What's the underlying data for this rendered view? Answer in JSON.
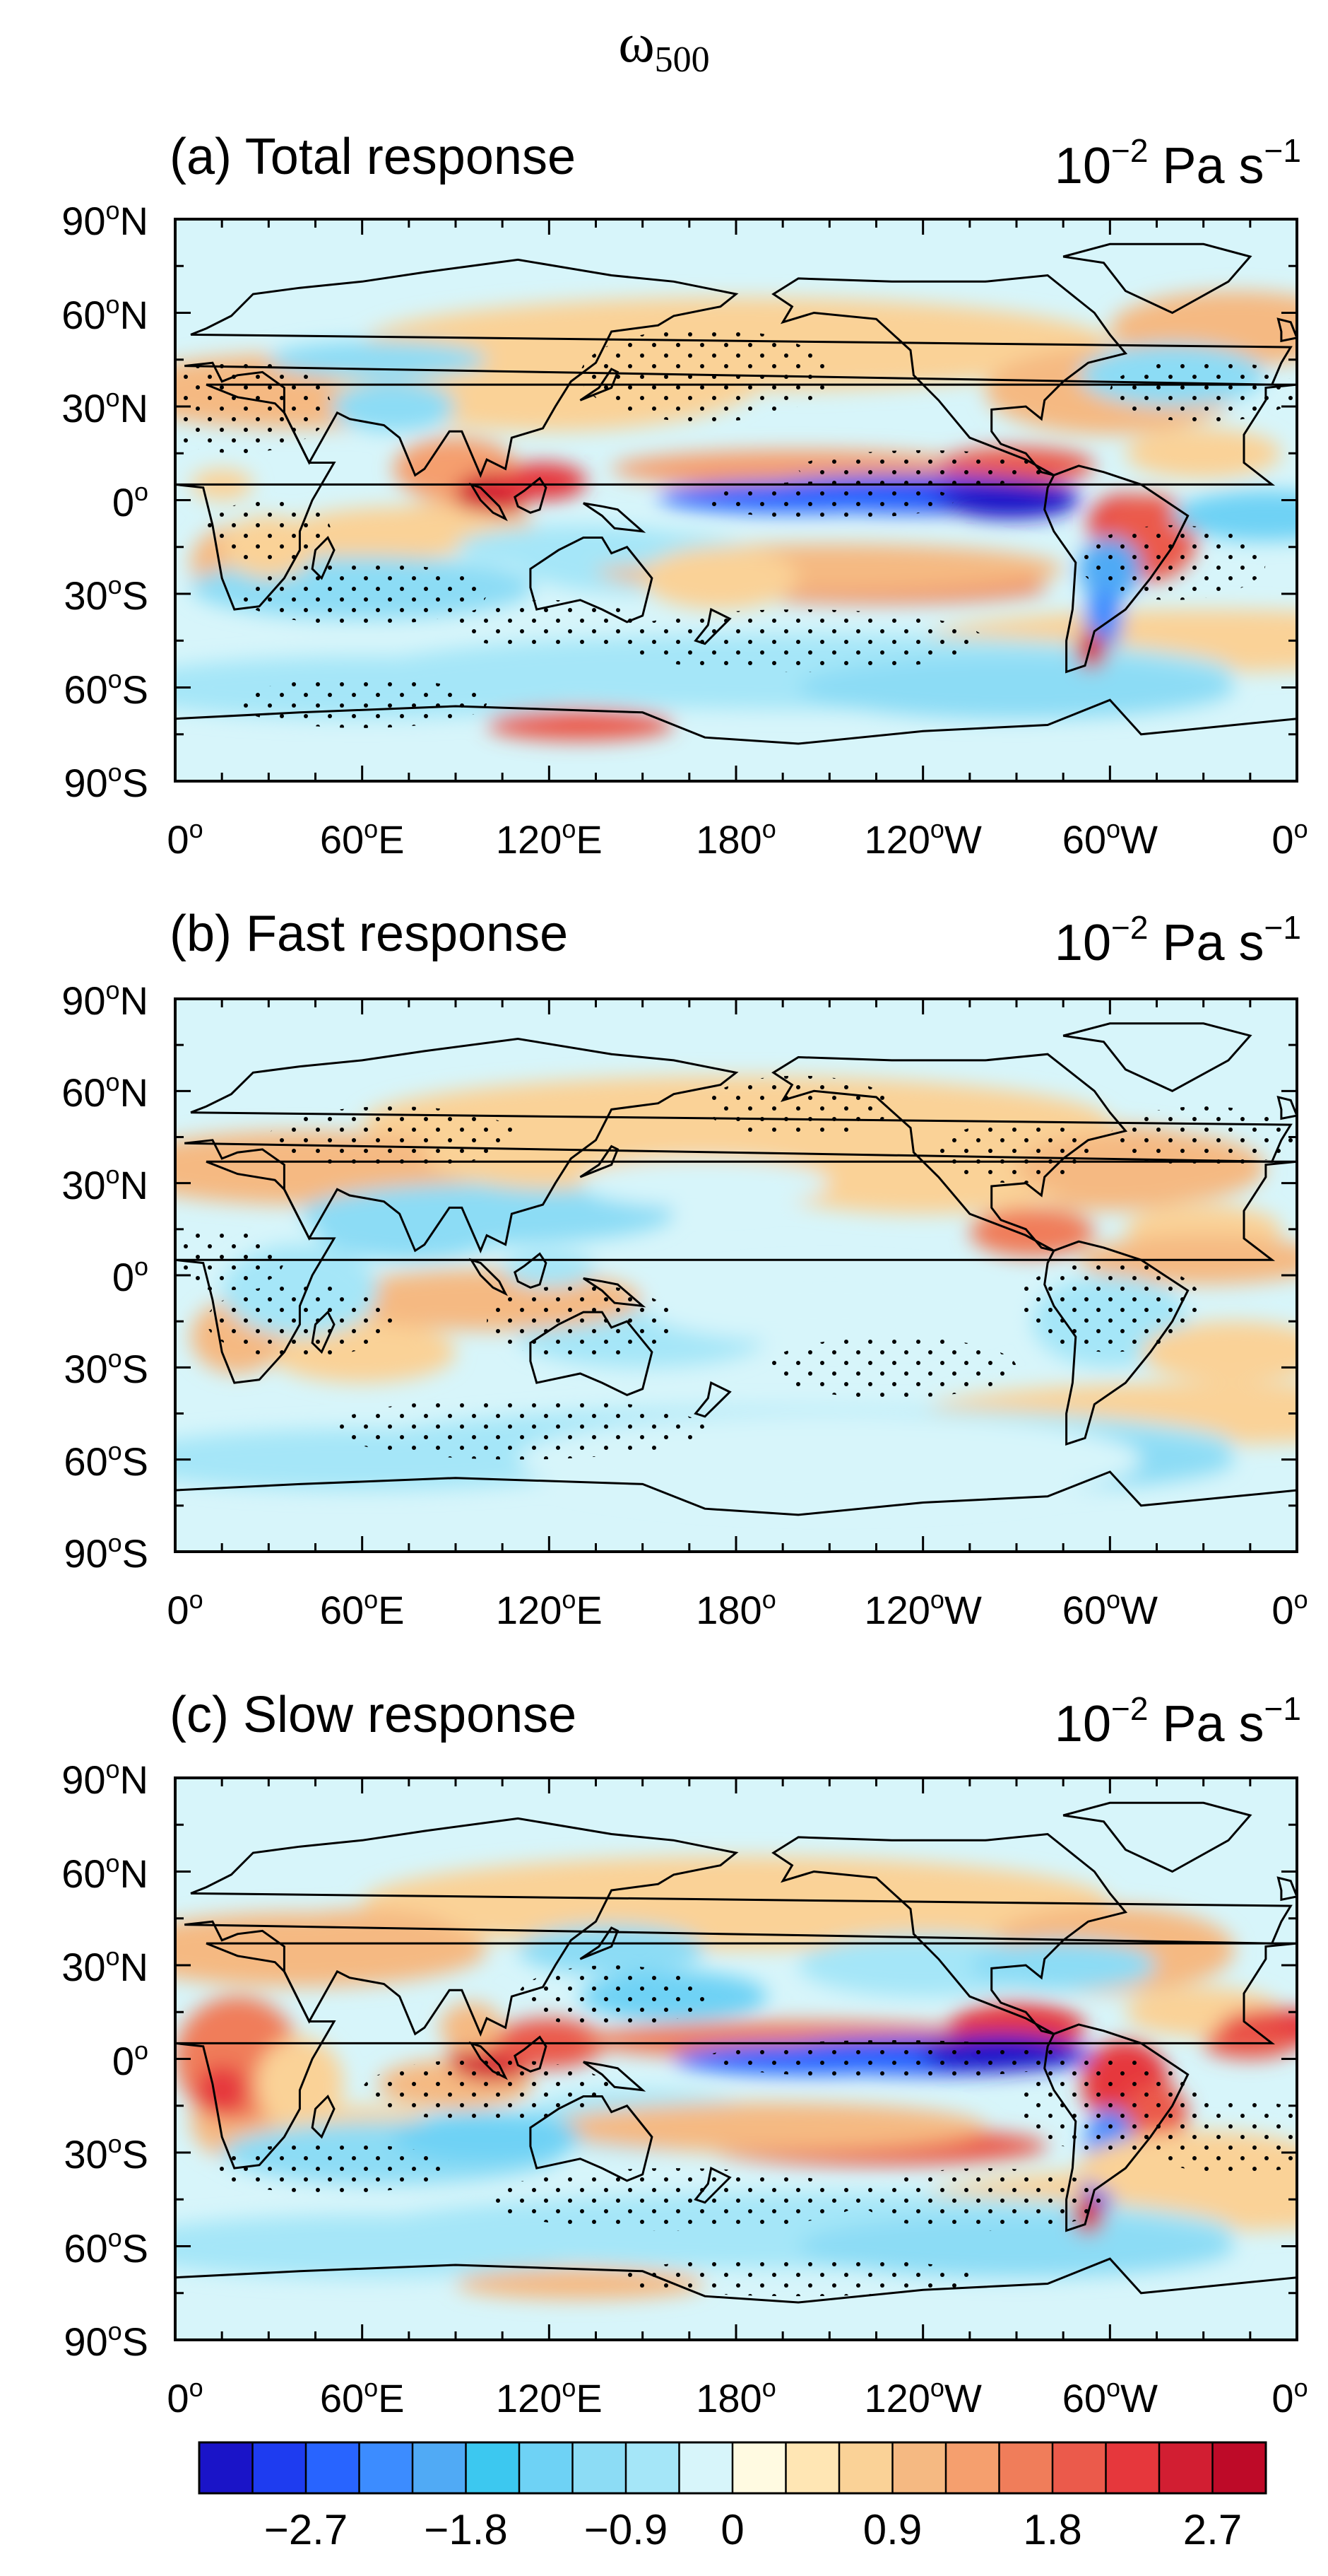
{
  "figure": {
    "title_symbol": "ω",
    "title_subscript": "500"
  },
  "panels": [
    {
      "title": "(a) Total response",
      "units_base": "10",
      "units_exp": "−2",
      "units_rest": " Pa s",
      "units_exp2": "−1",
      "pattern": "total"
    },
    {
      "title": "(b) Fast response",
      "units_base": "10",
      "units_exp": "−2",
      "units_rest": " Pa s",
      "units_exp2": "−1",
      "pattern": "fast"
    },
    {
      "title": "(c) Slow response",
      "units_base": "10",
      "units_exp": "−2",
      "units_rest": " Pa s",
      "units_exp2": "−1",
      "pattern": "slow"
    }
  ],
  "lat_ticks": [
    {
      "deg": "90",
      "sup": "o",
      "hem": "N",
      "value": 90
    },
    {
      "deg": "60",
      "sup": "o",
      "hem": "N",
      "value": 60
    },
    {
      "deg": "30",
      "sup": "o",
      "hem": "N",
      "value": 30
    },
    {
      "deg": "0",
      "sup": "o",
      "hem": "",
      "value": 0
    },
    {
      "deg": "30",
      "sup": "o",
      "hem": "S",
      "value": -30
    },
    {
      "deg": "60",
      "sup": "o",
      "hem": "S",
      "value": -60
    },
    {
      "deg": "90",
      "sup": "o",
      "hem": "S",
      "value": -90
    }
  ],
  "lon_ticks": [
    {
      "deg": "0",
      "sup": "o",
      "hem": "",
      "value": 0
    },
    {
      "deg": "60",
      "sup": "o",
      "hem": "E",
      "value": 60
    },
    {
      "deg": "120",
      "sup": "o",
      "hem": "E",
      "value": 120
    },
    {
      "deg": "180",
      "sup": "o",
      "hem": "",
      "value": 180
    },
    {
      "deg": "120",
      "sup": "o",
      "hem": "W",
      "value": 240
    },
    {
      "deg": "60",
      "sup": "o",
      "hem": "W",
      "value": 300
    },
    {
      "deg": "0",
      "sup": "o",
      "hem": "",
      "value": 360
    }
  ],
  "colorbar": {
    "colors": [
      "#1a14c8",
      "#1e3cf0",
      "#2864ff",
      "#3c8cff",
      "#50aaf5",
      "#3cc8f0",
      "#6ed2f5",
      "#8cdcf5",
      "#a5e6f8",
      "#d7f5fa",
      "#fffae1",
      "#ffe6b4",
      "#fad297",
      "#f5b982",
      "#f59f6e",
      "#f07d5a",
      "#eb5a4b",
      "#e6373c",
      "#d21e32",
      "#be0a28"
    ],
    "labels": [
      {
        "text": "−2.7",
        "boundary": 2
      },
      {
        "text": "−1.8",
        "boundary": 5
      },
      {
        "text": "−0.9",
        "boundary": 8
      },
      {
        "text": "0",
        "boundary": 10
      },
      {
        "text": "0.9",
        "boundary": 13
      },
      {
        "text": "1.8",
        "boundary": 16
      },
      {
        "text": "2.7",
        "boundary": 19
      }
    ]
  }
}
